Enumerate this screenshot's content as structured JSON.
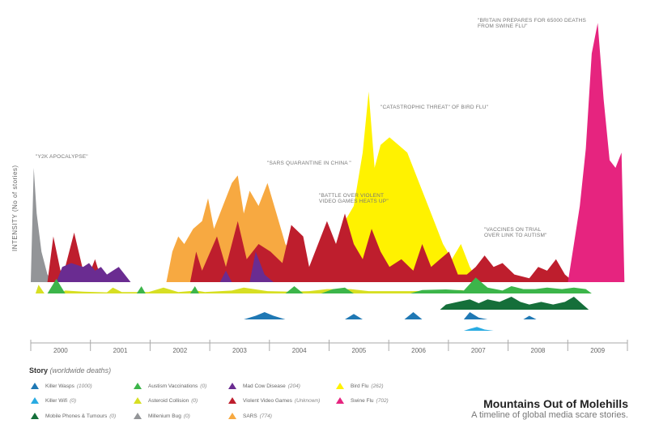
{
  "chart_data": {
    "type": "area",
    "title": "Mountains Out of Molehills",
    "subtitle": "A timeline of global media scare stories.",
    "ylabel": "INTENSITY (No of stories)",
    "xlabel": "",
    "x_categories": [
      "2000",
      "2001",
      "2002",
      "2003",
      "2004",
      "2005",
      "2006",
      "2007",
      "2008",
      "2009"
    ],
    "legend_title": "Story",
    "legend_subtitle": "(worldwide deaths)",
    "annotations": [
      {
        "id": "y2k",
        "text": "\"Y2K APOCALYPSE\"",
        "year": 2000.0
      },
      {
        "id": "sars",
        "text": "\"SARS QUARANTINE IN CHINA \"",
        "year": 2003.5
      },
      {
        "id": "games",
        "text": "\"BATTLE OVER VIOLENT\nVIDEO GAMES HEATS UP\"",
        "year": 2004.3
      },
      {
        "id": "birdflu",
        "text": "\"CATASTROPHIC THREAT\" OF BIRD FLU\"",
        "year": 2005.3
      },
      {
        "id": "vaccines",
        "text": "\"VACCINES ON TRIAL\nOVER LINK TO AUTISM\"",
        "year": 2007.1
      },
      {
        "id": "swineflu",
        "text": "\"BRITAIN PREPARES FOR 65000 DEATHS\nFROM SWINE FLU\"",
        "year": 2009.0
      }
    ],
    "series": [
      {
        "key": "killer_wasps",
        "name": "Killer Wasps",
        "deaths": "(1000)",
        "color": "#1f78b4",
        "band": "lower",
        "points": [
          [
            2003.2,
            0
          ],
          [
            2003.4,
            1
          ],
          [
            2003.55,
            2
          ],
          [
            2003.7,
            1
          ],
          [
            2003.9,
            0
          ],
          [
            2004.9,
            0
          ],
          [
            2005.05,
            1.5
          ],
          [
            2005.2,
            0
          ],
          [
            2005.9,
            0
          ],
          [
            2006.05,
            2
          ],
          [
            2006.2,
            0
          ],
          [
            2006.9,
            0
          ],
          [
            2007.0,
            2
          ],
          [
            2007.15,
            0.5
          ],
          [
            2007.3,
            0
          ],
          [
            2007.9,
            0
          ],
          [
            2008.0,
            1
          ],
          [
            2008.12,
            0
          ]
        ]
      },
      {
        "key": "killer_wifi",
        "name": "Killer Wifi",
        "deaths": "(0)",
        "color": "#29abe2",
        "band": "lower2",
        "points": [
          [
            2006.9,
            0
          ],
          [
            2007.0,
            0.8
          ],
          [
            2007.12,
            1.6
          ],
          [
            2007.25,
            0.5
          ],
          [
            2007.4,
            0
          ]
        ]
      },
      {
        "key": "mobile_phones",
        "name": "Mobile Phones & Tumours",
        "deaths": "(0)",
        "color": "#156f3a",
        "band": "lower3",
        "points": [
          [
            2006.5,
            0
          ],
          [
            2006.6,
            2
          ],
          [
            2006.8,
            3
          ],
          [
            2007.0,
            4
          ],
          [
            2007.15,
            2.5
          ],
          [
            2007.3,
            4
          ],
          [
            2007.5,
            3
          ],
          [
            2007.7,
            5
          ],
          [
            2007.85,
            3
          ],
          [
            2008.0,
            2
          ],
          [
            2008.2,
            3
          ],
          [
            2008.4,
            2
          ],
          [
            2008.6,
            3
          ],
          [
            2008.75,
            5
          ],
          [
            2008.9,
            2
          ],
          [
            2009.0,
            0
          ]
        ]
      },
      {
        "key": "autism_vaccinations",
        "name": "Austism Vaccinations",
        "deaths": "(0)",
        "color": "#3cb54a",
        "band": "mid",
        "points": [
          [
            1999.9,
            0
          ],
          [
            2000.05,
            5
          ],
          [
            2000.2,
            0
          ],
          [
            2001.4,
            0
          ],
          [
            2001.48,
            2.5
          ],
          [
            2001.55,
            0
          ],
          [
            2002.3,
            0
          ],
          [
            2002.38,
            2.5
          ],
          [
            2002.45,
            0
          ],
          [
            2003.9,
            0
          ],
          [
            2004.05,
            2.5
          ],
          [
            2004.2,
            0
          ],
          [
            2004.5,
            0
          ],
          [
            2004.7,
            1.5
          ],
          [
            2004.9,
            2
          ],
          [
            2005.05,
            0
          ],
          [
            2006.0,
            0
          ],
          [
            2006.2,
            1.2
          ],
          [
            2006.6,
            1.4
          ],
          [
            2006.9,
            1
          ],
          [
            2007.1,
            5.5
          ],
          [
            2007.3,
            2
          ],
          [
            2007.55,
            1
          ],
          [
            2007.7,
            2.5
          ],
          [
            2007.9,
            1.5
          ],
          [
            2008.1,
            1.5
          ],
          [
            2008.3,
            2
          ],
          [
            2008.55,
            1.5
          ],
          [
            2008.75,
            2
          ],
          [
            2008.95,
            1.5
          ],
          [
            2009.05,
            0
          ]
        ]
      },
      {
        "key": "asteroid_collision",
        "name": "Asteroid Collision",
        "deaths": "(0)",
        "color": "#d7df23",
        "band": "mid",
        "points": [
          [
            1999.7,
            0
          ],
          [
            1999.75,
            3
          ],
          [
            1999.85,
            0
          ],
          [
            2000.1,
            0
          ],
          [
            2000.2,
            1
          ],
          [
            2000.5,
            0.6
          ],
          [
            2000.9,
            0.4
          ],
          [
            2001.0,
            2
          ],
          [
            2001.15,
            0.5
          ],
          [
            2001.6,
            0.5
          ],
          [
            2001.85,
            2
          ],
          [
            2002.1,
            0.5
          ],
          [
            2002.4,
            1
          ],
          [
            2002.55,
            0.5
          ],
          [
            2003.0,
            1
          ],
          [
            2003.2,
            2
          ],
          [
            2003.6,
            0.8
          ],
          [
            2004.0,
            0.6
          ],
          [
            2004.3,
            0.8
          ],
          [
            2004.6,
            1.5
          ],
          [
            2005.0,
            1.5
          ],
          [
            2005.3,
            0.8
          ],
          [
            2006.0,
            0.8
          ],
          [
            2006.5,
            1
          ],
          [
            2006.85,
            1.2
          ],
          [
            2007.0,
            0.6
          ],
          [
            2007.4,
            0.4
          ],
          [
            2007.9,
            0.5
          ],
          [
            2008.2,
            0.4
          ],
          [
            2008.6,
            0.5
          ],
          [
            2008.8,
            0.3
          ],
          [
            2009.0,
            0
          ]
        ]
      },
      {
        "key": "mad_cow",
        "name": "Mad Cow Disease",
        "deaths": "(204)",
        "color": "#6a2c91",
        "band": "upper",
        "points": [
          [
            2000.05,
            0
          ],
          [
            2000.15,
            4
          ],
          [
            2000.3,
            5
          ],
          [
            2000.5,
            4
          ],
          [
            2000.6,
            5
          ],
          [
            2000.7,
            3
          ],
          [
            2000.8,
            4
          ],
          [
            2000.9,
            2
          ],
          [
            2001.0,
            3
          ],
          [
            2001.1,
            4
          ],
          [
            2001.2,
            2
          ],
          [
            2001.3,
            0
          ],
          [
            2002.8,
            0
          ],
          [
            2002.9,
            3
          ],
          [
            2003.0,
            0
          ],
          [
            2003.3,
            0
          ],
          [
            2003.4,
            8
          ],
          [
            2003.55,
            2
          ],
          [
            2003.7,
            0
          ]
        ]
      },
      {
        "key": "violent_games",
        "name": "Violent Video Games",
        "deaths": "(Unknown)",
        "color": "#be1e2d",
        "band": "upper",
        "points": [
          [
            1999.9,
            0
          ],
          [
            2000.0,
            12
          ],
          [
            2000.12,
            3
          ],
          [
            2000.2,
            4
          ],
          [
            2000.35,
            13
          ],
          [
            2000.5,
            3
          ],
          [
            2000.6,
            2
          ],
          [
            2000.7,
            6
          ],
          [
            2000.8,
            1
          ],
          [
            2000.9,
            0
          ],
          [
            2002.3,
            0
          ],
          [
            2002.4,
            8
          ],
          [
            2002.5,
            3
          ],
          [
            2002.75,
            12
          ],
          [
            2002.9,
            4
          ],
          [
            2003.1,
            16
          ],
          [
            2003.25,
            6
          ],
          [
            2003.45,
            10
          ],
          [
            2003.65,
            8
          ],
          [
            2003.85,
            5
          ],
          [
            2004.0,
            15
          ],
          [
            2004.2,
            12
          ],
          [
            2004.3,
            4
          ],
          [
            2004.45,
            10
          ],
          [
            2004.6,
            16
          ],
          [
            2004.75,
            10
          ],
          [
            2004.9,
            18
          ],
          [
            2005.05,
            10
          ],
          [
            2005.2,
            6
          ],
          [
            2005.35,
            14
          ],
          [
            2005.5,
            8
          ],
          [
            2005.65,
            4
          ],
          [
            2005.85,
            6
          ],
          [
            2006.05,
            3
          ],
          [
            2006.2,
            10
          ],
          [
            2006.35,
            4
          ],
          [
            2006.5,
            6
          ],
          [
            2006.65,
            8
          ],
          [
            2006.8,
            2
          ],
          [
            2006.95,
            2
          ],
          [
            2007.1,
            4
          ],
          [
            2007.25,
            7
          ],
          [
            2007.4,
            4
          ],
          [
            2007.55,
            5
          ],
          [
            2007.75,
            2
          ],
          [
            2008.0,
            1
          ],
          [
            2008.15,
            4
          ],
          [
            2008.3,
            3
          ],
          [
            2008.45,
            6
          ],
          [
            2008.6,
            2
          ],
          [
            2008.75,
            0
          ]
        ]
      },
      {
        "key": "millenium_bug",
        "name": "Millenium Bug",
        "deaths": "(0)",
        "color": "#939598",
        "band": "upper",
        "points": [
          [
            1999.62,
            0
          ],
          [
            1999.67,
            30
          ],
          [
            1999.72,
            18
          ],
          [
            1999.8,
            8
          ],
          [
            1999.9,
            2
          ],
          [
            2000.0,
            0
          ]
        ]
      },
      {
        "key": "sars",
        "name": "SARS",
        "deaths": "(774)",
        "color": "#f7a941",
        "band": "upper",
        "points": [
          [
            2001.9,
            0
          ],
          [
            2002.0,
            8
          ],
          [
            2002.1,
            12
          ],
          [
            2002.2,
            10
          ],
          [
            2002.35,
            14
          ],
          [
            2002.5,
            16
          ],
          [
            2002.6,
            22
          ],
          [
            2002.7,
            14
          ],
          [
            2002.85,
            20
          ],
          [
            2003.0,
            26
          ],
          [
            2003.1,
            28
          ],
          [
            2003.2,
            18
          ],
          [
            2003.3,
            24
          ],
          [
            2003.45,
            20
          ],
          [
            2003.6,
            26
          ],
          [
            2003.75,
            18
          ],
          [
            2003.9,
            10
          ],
          [
            2004.1,
            6
          ],
          [
            2004.3,
            2
          ],
          [
            2004.5,
            0
          ],
          [
            2008.0,
            0
          ],
          [
            2008.1,
            2
          ],
          [
            2008.2,
            0
          ]
        ]
      },
      {
        "key": "bird_flu",
        "name": "Bird Flu",
        "deaths": "(262)",
        "color": "#fff200",
        "band": "upper",
        "points": [
          [
            2004.5,
            0
          ],
          [
            2004.6,
            14
          ],
          [
            2004.75,
            10
          ],
          [
            2004.9,
            16
          ],
          [
            2005.05,
            20
          ],
          [
            2005.2,
            34
          ],
          [
            2005.3,
            50
          ],
          [
            2005.4,
            30
          ],
          [
            2005.5,
            36
          ],
          [
            2005.65,
            38
          ],
          [
            2005.8,
            36
          ],
          [
            2005.95,
            34
          ],
          [
            2006.1,
            28
          ],
          [
            2006.25,
            22
          ],
          [
            2006.4,
            16
          ],
          [
            2006.55,
            10
          ],
          [
            2006.7,
            6
          ],
          [
            2006.85,
            10
          ],
          [
            2007.0,
            4
          ],
          [
            2007.15,
            0
          ]
        ]
      },
      {
        "key": "swine_flu",
        "name": "Swine Flu",
        "deaths": "(702)",
        "color": "#e6247f",
        "band": "upper",
        "points": [
          [
            2008.65,
            0
          ],
          [
            2008.75,
            10
          ],
          [
            2008.85,
            20
          ],
          [
            2008.95,
            35
          ],
          [
            2009.05,
            60
          ],
          [
            2009.15,
            68
          ],
          [
            2009.25,
            48
          ],
          [
            2009.35,
            32
          ],
          [
            2009.45,
            30
          ],
          [
            2009.55,
            34
          ],
          [
            2009.6,
            0
          ]
        ]
      }
    ]
  }
}
